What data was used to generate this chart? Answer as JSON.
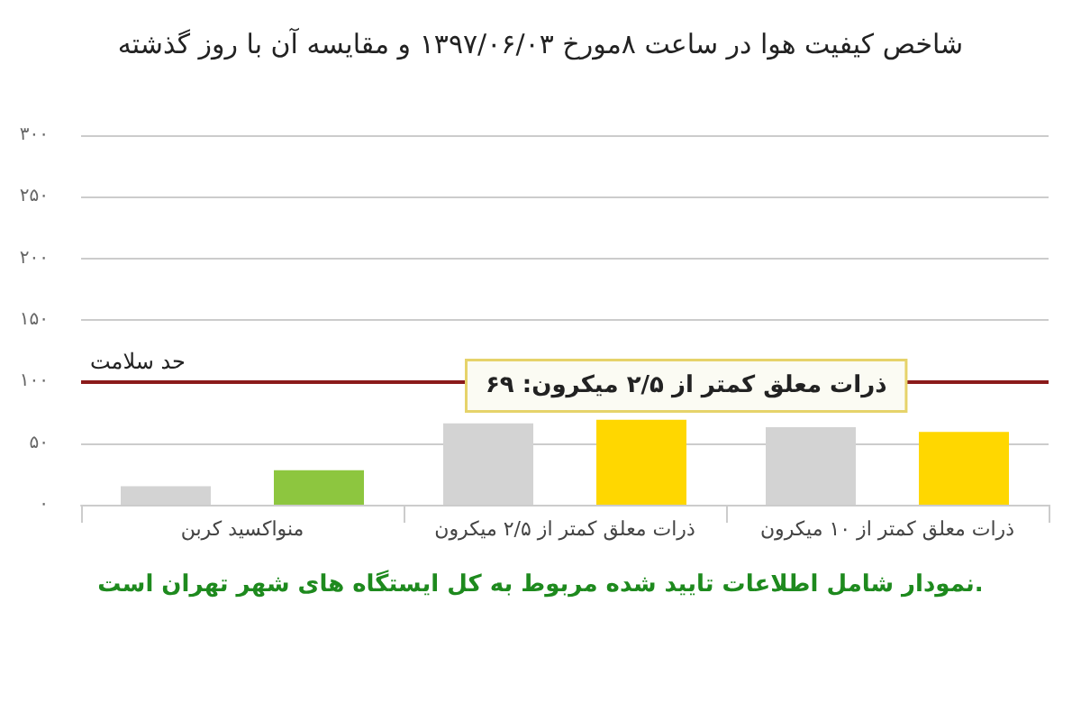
{
  "chart_data": {
    "type": "bar",
    "title": "شاخص کیفیت هوا در ساعت ۸مورخ ۱۳۹۷/۰۶/۰۳ و مقایسه آن با روز گذشته",
    "categories": [
      "منواکسید کربن",
      "ذرات معلق کمتر از ۲/۵ میکرون",
      "ذرات معلق کمتر از ۱۰ میکرون"
    ],
    "series": [
      {
        "color": "#d3d3d3",
        "values": [
          15,
          66,
          63
        ]
      },
      {
        "colors": [
          "#8dc63f",
          "#ffd700",
          "#ffd700"
        ],
        "values": [
          28,
          69,
          59
        ]
      }
    ],
    "ylim": [
      0,
      300
    ],
    "yticks": [
      {
        "value": 0,
        "label": "۰"
      },
      {
        "value": 50,
        "label": "۵۰"
      },
      {
        "value": 100,
        "label": "۱۰۰"
      },
      {
        "value": 150,
        "label": "۱۵۰"
      },
      {
        "value": 200,
        "label": "۲۰۰"
      },
      {
        "value": 250,
        "label": "۲۵۰"
      },
      {
        "value": 300,
        "label": "۳۰۰"
      }
    ],
    "grid": "y",
    "ref_lines": [
      {
        "axis": "y",
        "value": 100,
        "label": "حد سلامت",
        "color": "#8b1a1a"
      }
    ],
    "annotations": [
      "ذرات معلق کمتر از ۲/۵ میکرون: ۶۹",
      "نمودار شامل اطلاعات تایید شده مربوط به کل ایستگاه های شهر تهران است."
    ]
  }
}
